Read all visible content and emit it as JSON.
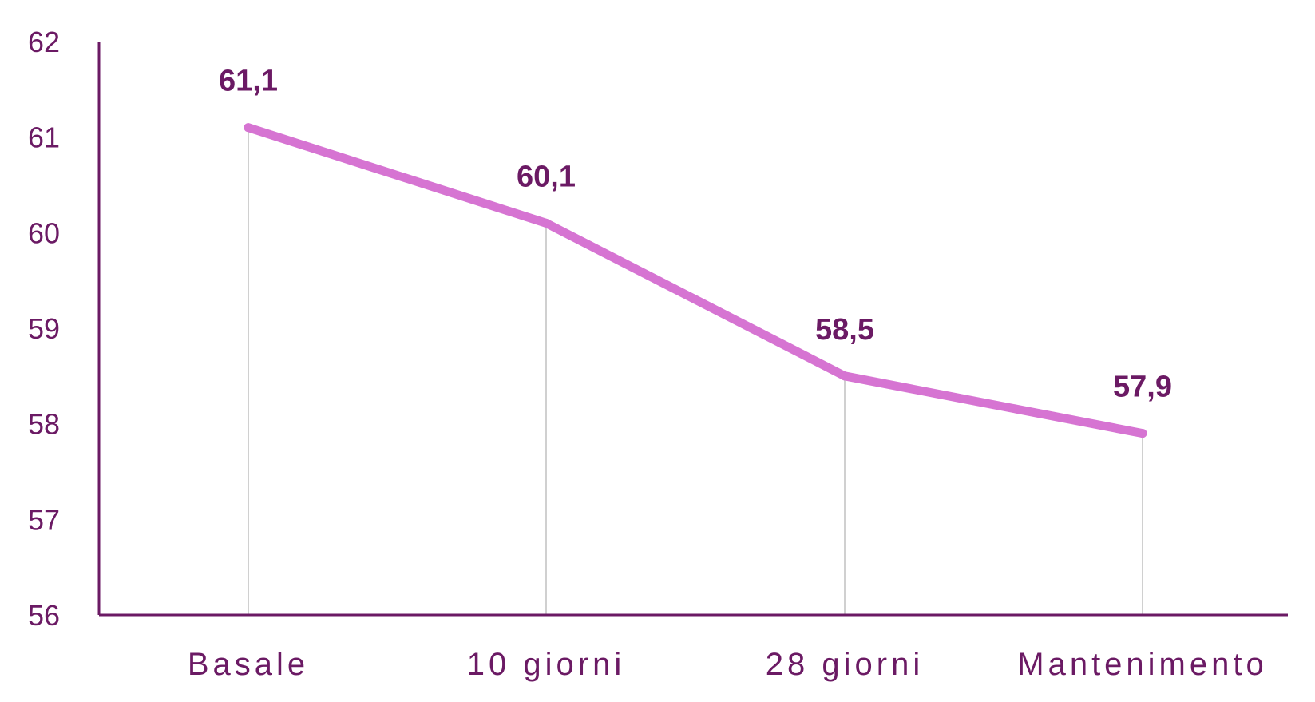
{
  "chart_data": {
    "type": "line",
    "categories": [
      "Basale",
      "10 giorni",
      "28 giorni",
      "Mantenimento"
    ],
    "series": [
      {
        "values": [
          61.1,
          60.1,
          58.5,
          57.9
        ],
        "data_labels": [
          "61,1",
          "60,1",
          "58,5",
          "57,9"
        ]
      }
    ],
    "ylim": [
      56,
      62
    ],
    "yticks": [
      56,
      57,
      58,
      59,
      60,
      61,
      62
    ],
    "ytick_labels": [
      "56",
      "57",
      "58",
      "59",
      "60",
      "61",
      "62"
    ],
    "title": "",
    "xlabel": "",
    "ylabel": "",
    "grid": false,
    "drop_lines": true
  },
  "colors": {
    "axis": "#6b1a64",
    "text": "#6b1a64",
    "line": "#d674d2",
    "drop_line": "#d0d0d0"
  }
}
